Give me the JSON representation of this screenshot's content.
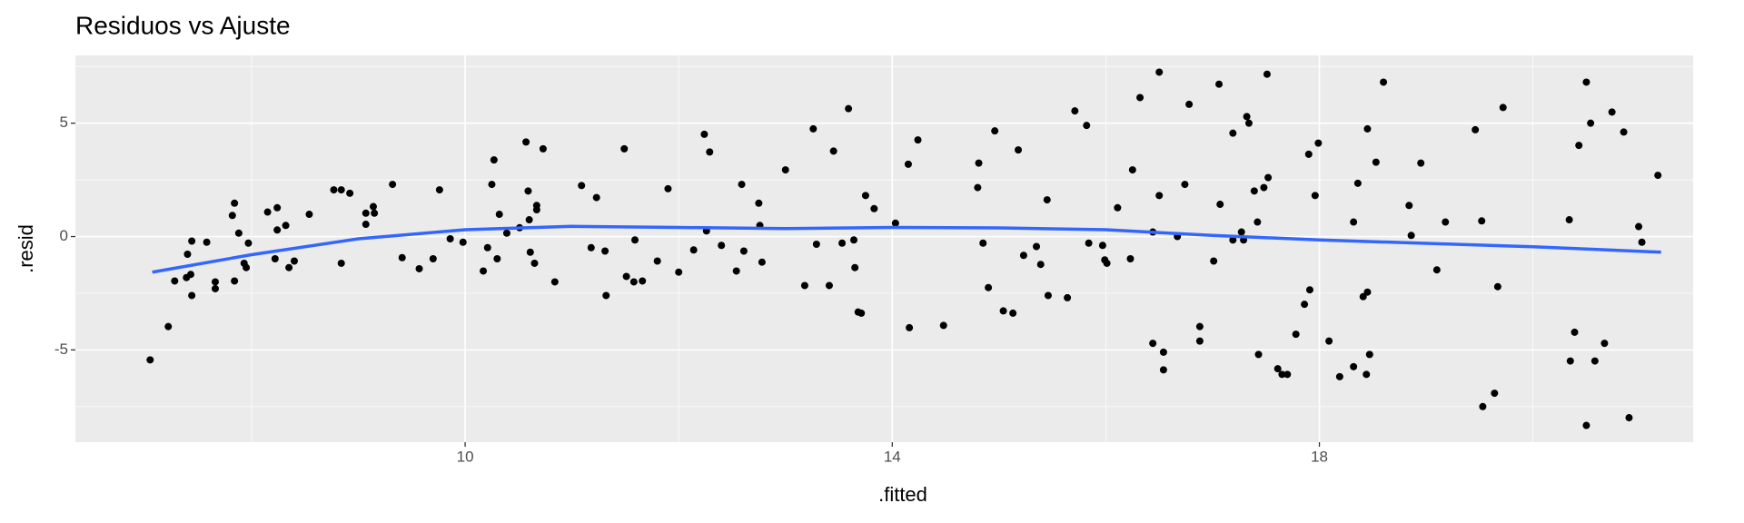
{
  "chart_data": {
    "type": "scatter",
    "title": "Residuos vs Ajuste",
    "x_label": ".fitted",
    "y_label": ".resid",
    "x": [
      7.05,
      7.22,
      7.28,
      7.39,
      7.4,
      7.44,
      7.44,
      7.43,
      7.58,
      7.66,
      7.66,
      7.82,
      7.84,
      7.84,
      7.88,
      7.93,
      7.95,
      7.97,
      8.15,
      8.24,
      8.22,
      8.24,
      8.32,
      8.35,
      8.4,
      8.54,
      8.77,
      8.84,
      8.84,
      8.92,
      9.07,
      9.07,
      9.14,
      9.15,
      9.32,
      9.41,
      9.57,
      9.7,
      9.76,
      9.86,
      9.98,
      10.17,
      10.21,
      10.25,
      10.27,
      10.3,
      10.32,
      10.39,
      10.51,
      10.57,
      10.59,
      10.6,
      10.61,
      10.65,
      10.67,
      10.67,
      10.73,
      10.84,
      11.09,
      11.18,
      11.23,
      11.31,
      11.32,
      11.49,
      11.51,
      11.58,
      11.59,
      11.66,
      11.8,
      11.9,
      12.0,
      12.14,
      12.24,
      12.26,
      12.29,
      12.4,
      12.54,
      12.59,
      12.61,
      12.75,
      12.76,
      12.78,
      13.0,
      13.18,
      13.26,
      13.29,
      13.41,
      13.45,
      13.53,
      13.59,
      13.64,
      13.65,
      13.68,
      13.71,
      13.75,
      13.83,
      14.03,
      14.15,
      14.16,
      14.24,
      14.48,
      14.8,
      14.81,
      14.85,
      14.9,
      14.96,
      15.04,
      15.13,
      15.18,
      15.23,
      15.35,
      15.39,
      15.45,
      15.46,
      15.64,
      15.71,
      15.82,
      15.84,
      15.97,
      15.99,
      16.01,
      16.11,
      16.23,
      16.25,
      16.32,
      16.44,
      16.44,
      16.5,
      16.5,
      16.54,
      16.54,
      16.67,
      16.74,
      16.78,
      16.88,
      16.88,
      17.01,
      17.06,
      17.07,
      17.19,
      17.19,
      17.27,
      17.29,
      17.32,
      17.34,
      17.39,
      17.42,
      17.43,
      17.48,
      17.51,
      17.52,
      17.61,
      17.65,
      17.7,
      17.78,
      17.86,
      17.9,
      17.91,
      17.96,
      17.99,
      18.09,
      18.19,
      18.32,
      18.32,
      18.36,
      18.41,
      18.44,
      18.45,
      18.45,
      18.47,
      18.53,
      18.6,
      18.84,
      18.86,
      18.95,
      19.1,
      19.18,
      19.46,
      19.52,
      19.53,
      19.64,
      19.67,
      19.72,
      20.34,
      20.5,
      20.5,
      20.35,
      20.39,
      20.43,
      20.54,
      20.58,
      20.67,
      20.74,
      20.85,
      20.9,
      20.99,
      21.02,
      21.17
    ],
    "values": [
      -5.44,
      -3.97,
      -1.96,
      -1.81,
      -0.78,
      -0.2,
      -2.6,
      -1.67,
      -0.25,
      -2.0,
      -2.3,
      0.93,
      1.47,
      -1.96,
      0.15,
      -1.18,
      -1.37,
      -0.29,
      1.08,
      1.27,
      -0.98,
      0.29,
      0.49,
      -1.37,
      -1.08,
      0.98,
      2.06,
      2.06,
      -1.18,
      1.91,
      0.54,
      1.03,
      1.32,
      1.03,
      2.3,
      -0.93,
      -1.42,
      -0.98,
      2.06,
      -0.1,
      -0.25,
      -1.52,
      -0.49,
      2.3,
      3.38,
      -0.98,
      0.98,
      0.15,
      0.39,
      4.17,
      2.01,
      0.74,
      -0.69,
      -1.18,
      1.37,
      1.18,
      3.87,
      -2.0,
      2.25,
      -0.49,
      1.72,
      -0.64,
      -2.6,
      3.87,
      -1.76,
      -2.0,
      -0.15,
      -1.96,
      -1.08,
      2.11,
      -1.57,
      -0.59,
      4.51,
      0.25,
      3.73,
      -0.39,
      -1.52,
      2.3,
      -0.64,
      1.47,
      0.49,
      -1.13,
      2.94,
      -2.16,
      4.75,
      -0.34,
      -2.16,
      3.77,
      -0.29,
      5.64,
      -0.15,
      -1.37,
      -3.33,
      -3.38,
      1.81,
      1.23,
      0.59,
      3.19,
      -4.02,
      4.26,
      -3.92,
      2.16,
      3.24,
      -0.29,
      -2.25,
      4.66,
      -3.28,
      -3.38,
      3.82,
      -0.83,
      -0.44,
      -1.23,
      1.62,
      -2.6,
      -2.7,
      5.54,
      4.9,
      -0.29,
      -0.39,
      -1.03,
      -1.18,
      1.27,
      -0.98,
      2.94,
      6.13,
      -4.71,
      0.2,
      7.25,
      1.81,
      -5.1,
      -5.88,
      0.0,
      2.3,
      5.83,
      -3.97,
      -4.61,
      -1.08,
      6.72,
      1.42,
      4.56,
      -0.15,
      0.2,
      -0.15,
      5.29,
      5.0,
      2.01,
      0.64,
      -5.2,
      2.16,
      7.16,
      2.6,
      -5.83,
      -6.08,
      -6.08,
      -4.31,
      -2.99,
      3.63,
      -2.35,
      1.81,
      4.12,
      -4.61,
      -6.18,
      -5.74,
      0.64,
      2.35,
      -2.65,
      -6.08,
      -2.45,
      4.75,
      -5.2,
      3.28,
      6.81,
      1.37,
      0.05,
      3.24,
      -1.47,
      0.64,
      4.71,
      0.69,
      -7.5,
      -6.91,
      -2.21,
      5.69,
      0.74,
      6.81,
      -8.33,
      -5.49,
      -4.22,
      4.02,
      5.0,
      -5.49,
      -4.71,
      5.49,
      4.61,
      -7.99,
      0.44,
      -0.25,
      2.7
    ],
    "color": "#000000",
    "smooth": {
      "x": [
        7.07,
        8,
        9,
        10,
        11,
        12,
        13,
        14,
        15,
        16,
        17,
        18,
        19,
        20,
        21.2
      ],
      "values": [
        -1.57,
        -0.8,
        -0.1,
        0.3,
        0.45,
        0.4,
        0.35,
        0.4,
        0.38,
        0.3,
        0.05,
        -0.15,
        -0.3,
        -0.45,
        -0.69
      ],
      "color": "#3366ff"
    },
    "xlim": [
      6.35,
      21.5
    ],
    "ylim": [
      -9.07,
      7.99
    ],
    "xticks": [
      10,
      14,
      18
    ],
    "yticks": [
      -5,
      0,
      5
    ],
    "minor_xticks": [
      8,
      12,
      16,
      20
    ],
    "minor_yticks": [
      -7.5,
      -2.5,
      2.5,
      7.5
    ],
    "grid": true
  }
}
